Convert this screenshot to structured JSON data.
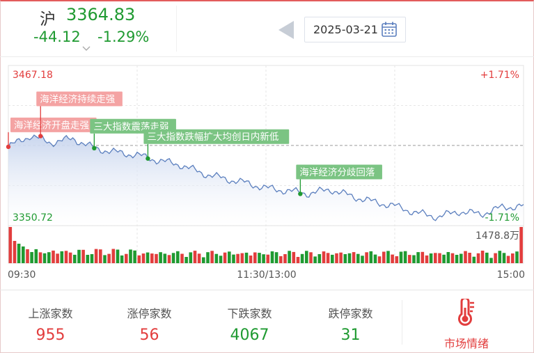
{
  "index": {
    "name": "沪",
    "price": "3364.83",
    "change": "-44.12",
    "change_pct": "-1.29%"
  },
  "date_picker": {
    "date": "2025-03-21"
  },
  "chart": {
    "y_max_label": "3467.18",
    "y_min_label": "3350.72",
    "pct_max_label": "+1.71%",
    "pct_min_label": "-1.71%",
    "volume_max_label": "1478.8万",
    "x_labels": [
      "09:30",
      "11:30/13:00",
      "15:00"
    ],
    "events": [
      {
        "text": "海洋经济开盘走强",
        "time_index": 0,
        "tone": "up"
      },
      {
        "text": "海洋经济持续走强",
        "time_index": 15,
        "tone": "up"
      },
      {
        "text": "三大指数震荡走弱",
        "time_index": 40,
        "tone": "down"
      },
      {
        "text": "三大指数跌幅扩大均创日内新低",
        "time_index": 65,
        "tone": "down"
      },
      {
        "text": "海洋经济分歧回落",
        "time_index": 136,
        "tone": "down"
      }
    ],
    "colors": {
      "up": "#e23d3d",
      "down": "#1f9a31",
      "line": "#5b7fbe",
      "fill": "#c9d6ee",
      "up_badge": "#f4a3a3",
      "down_badge": "#7bc483"
    }
  },
  "chart_data": {
    "type": "line",
    "title": "",
    "xlabel": "",
    "ylabel": "",
    "prev_close": 3409.0,
    "ylim": [
      3350.72,
      3467.18
    ],
    "x": [
      "09:30",
      "09:40",
      "09:50",
      "10:00",
      "10:10",
      "10:20",
      "10:30",
      "10:40",
      "10:50",
      "11:00",
      "11:10",
      "11:20",
      "11:30/13:00",
      "13:10",
      "13:20",
      "13:30",
      "13:40",
      "13:50",
      "14:00",
      "14:10",
      "14:20",
      "14:30",
      "14:40",
      "14:50",
      "15:00"
    ],
    "series": [
      {
        "values": [
          3408,
          3416,
          3411,
          3414,
          3407,
          3404,
          3402,
          3398,
          3395,
          3389,
          3385,
          3382,
          3378,
          3376,
          3374,
          3377,
          3372,
          3368,
          3365,
          3360,
          3357,
          3361,
          3359,
          3364,
          3364.83
        ]
      }
    ]
  },
  "stats": [
    {
      "label": "上涨家数",
      "value": "955",
      "tone": "up"
    },
    {
      "label": "涨停家数",
      "value": "56",
      "tone": "up"
    },
    {
      "label": "下跌家数",
      "value": "4067",
      "tone": "down"
    },
    {
      "label": "跌停家数",
      "value": "31",
      "tone": "down"
    }
  ],
  "sentiment": {
    "label": "市场情绪",
    "icon": "thermometer-icon"
  }
}
